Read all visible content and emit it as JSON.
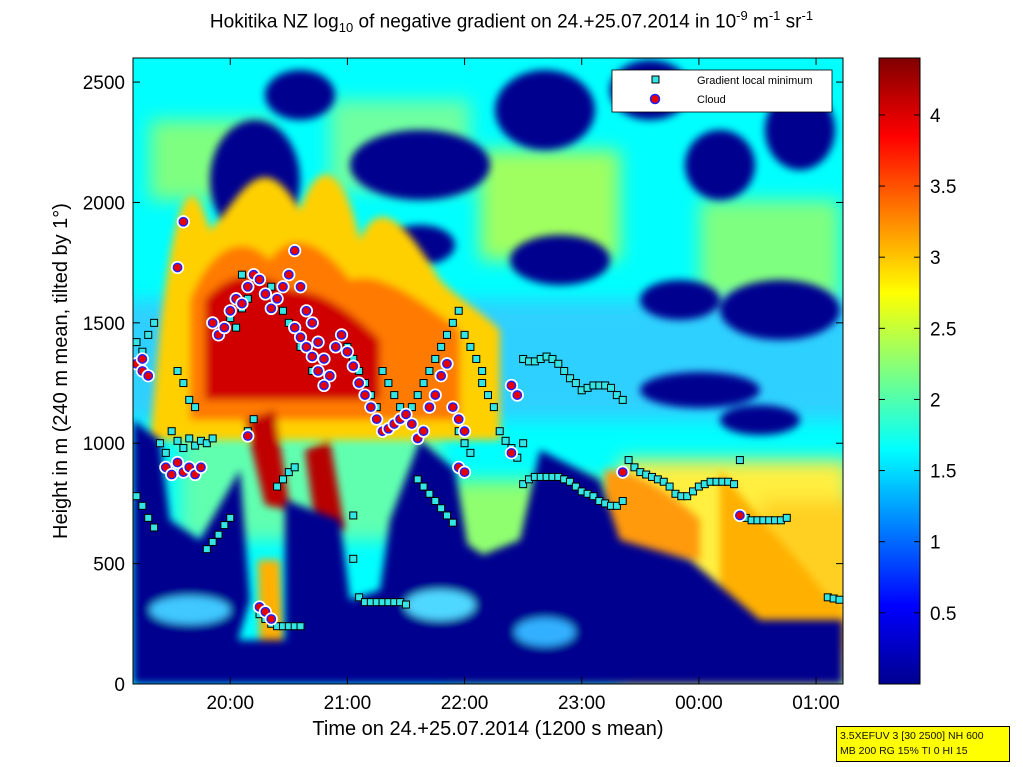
{
  "title": {
    "prefix": "Hokitika NZ log",
    "sub": "10",
    "mid": " of negative gradient on 24.+25.07.2014 in 10",
    "sup1": "-9",
    "mid2": " m",
    "sup2": "-1",
    "mid3": " sr",
    "sup3": "-1"
  },
  "info_box": {
    "line1": "3.5XEFUV 3 [30 2500] NH 600",
    "line2": "MB 200 RG 15% TI 0 HI 15"
  },
  "chart_data": {
    "type": "heatmap",
    "xlabel": "Time on 24.+25.07.2014 (1200 s mean)",
    "ylabel": "Height in m (240 m mean, tilted by 1°)",
    "x_unit": "hours since 00:00 on 24.07.2014",
    "xlim": [
      19.17,
      25.23
    ],
    "ylim": [
      0,
      2600
    ],
    "x_ticks": [
      {
        "value": 20,
        "label": "20:00"
      },
      {
        "value": 21,
        "label": "21:00"
      },
      {
        "value": 22,
        "label": "22:00"
      },
      {
        "value": 23,
        "label": "23:00"
      },
      {
        "value": 24,
        "label": "00:00"
      },
      {
        "value": 25,
        "label": "01:00"
      }
    ],
    "y_ticks": [
      0,
      500,
      1000,
      1500,
      2000,
      2500
    ],
    "colorbar": {
      "colormap": "jet",
      "range": [
        0,
        4.4
      ],
      "ticks": [
        0.5,
        1,
        1.5,
        2,
        2.5,
        3,
        3.5,
        4
      ]
    },
    "colors": {
      "background_low": "#00008f",
      "mid": "#7fff7f",
      "high": "#800000",
      "gradient_marker": "#33e6e6",
      "cloud_marker": "#e60000",
      "cloud_edge": "#2020ff"
    },
    "legend": {
      "position": "top-right",
      "entries": [
        "Gradient local minimum",
        "Cloud"
      ]
    },
    "series": [
      {
        "name": "Gradient local minimum",
        "marker": "square",
        "points": [
          [
            19.2,
            780
          ],
          [
            19.25,
            740
          ],
          [
            19.3,
            690
          ],
          [
            19.35,
            650
          ],
          [
            19.2,
            1420
          ],
          [
            19.25,
            1380
          ],
          [
            19.3,
            1450
          ],
          [
            19.35,
            1500
          ],
          [
            19.4,
            1000
          ],
          [
            19.45,
            960
          ],
          [
            19.5,
            1050
          ],
          [
            19.55,
            1010
          ],
          [
            19.6,
            980
          ],
          [
            19.65,
            1020
          ],
          [
            19.7,
            990
          ],
          [
            19.75,
            1010
          ],
          [
            19.8,
            1000
          ],
          [
            19.85,
            1020
          ],
          [
            19.55,
            1300
          ],
          [
            19.6,
            1250
          ],
          [
            19.65,
            1180
          ],
          [
            19.7,
            1150
          ],
          [
            19.8,
            560
          ],
          [
            19.85,
            590
          ],
          [
            19.9,
            620
          ],
          [
            19.95,
            660
          ],
          [
            20.0,
            690
          ],
          [
            20.0,
            1520
          ],
          [
            20.05,
            1480
          ],
          [
            20.1,
            1560
          ],
          [
            20.15,
            1600
          ],
          [
            20.1,
            1700
          ],
          [
            20.15,
            1050
          ],
          [
            20.2,
            1100
          ],
          [
            20.25,
            290
          ],
          [
            20.3,
            270
          ],
          [
            20.35,
            250
          ],
          [
            20.4,
            240
          ],
          [
            20.45,
            240
          ],
          [
            20.5,
            240
          ],
          [
            20.55,
            240
          ],
          [
            20.6,
            240
          ],
          [
            20.4,
            820
          ],
          [
            20.45,
            850
          ],
          [
            20.5,
            880
          ],
          [
            20.55,
            900
          ],
          [
            20.35,
            1650
          ],
          [
            20.4,
            1600
          ],
          [
            20.45,
            1550
          ],
          [
            20.5,
            1500
          ],
          [
            20.6,
            1400
          ],
          [
            20.7,
            1300
          ],
          [
            20.8,
            1250
          ],
          [
            21.0,
            1400
          ],
          [
            21.05,
            1350
          ],
          [
            21.1,
            1300
          ],
          [
            21.15,
            1250
          ],
          [
            21.2,
            1200
          ],
          [
            21.25,
            1150
          ],
          [
            21.3,
            1300
          ],
          [
            21.35,
            1250
          ],
          [
            21.4,
            1200
          ],
          [
            21.45,
            1150
          ],
          [
            21.5,
            1100
          ],
          [
            21.55,
            1150
          ],
          [
            21.6,
            1200
          ],
          [
            21.65,
            1250
          ],
          [
            21.7,
            1300
          ],
          [
            21.75,
            1350
          ],
          [
            21.8,
            1400
          ],
          [
            21.85,
            1450
          ],
          [
            21.9,
            1500
          ],
          [
            21.95,
            1550
          ],
          [
            22.0,
            1450
          ],
          [
            22.05,
            1400
          ],
          [
            22.1,
            1350
          ],
          [
            22.15,
            1300
          ],
          [
            21.05,
            700
          ],
          [
            21.05,
            520
          ],
          [
            21.1,
            360
          ],
          [
            21.15,
            340
          ],
          [
            21.2,
            340
          ],
          [
            21.25,
            340
          ],
          [
            21.3,
            340
          ],
          [
            21.35,
            340
          ],
          [
            21.4,
            340
          ],
          [
            21.45,
            340
          ],
          [
            21.5,
            330
          ],
          [
            21.6,
            850
          ],
          [
            21.65,
            820
          ],
          [
            21.7,
            790
          ],
          [
            21.75,
            760
          ],
          [
            21.8,
            730
          ],
          [
            21.85,
            700
          ],
          [
            21.9,
            670
          ],
          [
            21.95,
            1050
          ],
          [
            22.0,
            1000
          ],
          [
            22.05,
            960
          ],
          [
            22.15,
            1250
          ],
          [
            22.2,
            1200
          ],
          [
            22.25,
            1150
          ],
          [
            22.3,
            1050
          ],
          [
            22.35,
            1010
          ],
          [
            22.4,
            980
          ],
          [
            22.45,
            940
          ],
          [
            22.5,
            1000
          ],
          [
            22.5,
            1350
          ],
          [
            22.55,
            1340
          ],
          [
            22.6,
            1340
          ],
          [
            22.65,
            1350
          ],
          [
            22.7,
            1360
          ],
          [
            22.75,
            1350
          ],
          [
            22.8,
            1330
          ],
          [
            22.85,
            1300
          ],
          [
            22.9,
            1270
          ],
          [
            22.95,
            1250
          ],
          [
            23.0,
            1220
          ],
          [
            23.05,
            1230
          ],
          [
            23.1,
            1240
          ],
          [
            23.15,
            1240
          ],
          [
            23.2,
            1240
          ],
          [
            23.25,
            1230
          ],
          [
            23.3,
            1200
          ],
          [
            23.35,
            1180
          ],
          [
            22.5,
            830
          ],
          [
            22.55,
            850
          ],
          [
            22.6,
            860
          ],
          [
            22.65,
            860
          ],
          [
            22.7,
            860
          ],
          [
            22.75,
            860
          ],
          [
            22.8,
            860
          ],
          [
            22.85,
            850
          ],
          [
            22.9,
            840
          ],
          [
            22.95,
            820
          ],
          [
            23.0,
            800
          ],
          [
            23.05,
            790
          ],
          [
            23.1,
            780
          ],
          [
            23.15,
            760
          ],
          [
            23.2,
            750
          ],
          [
            23.25,
            740
          ],
          [
            23.3,
            740
          ],
          [
            23.35,
            760
          ],
          [
            23.4,
            930
          ],
          [
            23.45,
            900
          ],
          [
            23.5,
            880
          ],
          [
            23.55,
            870
          ],
          [
            23.6,
            860
          ],
          [
            23.65,
            850
          ],
          [
            23.7,
            840
          ],
          [
            23.75,
            820
          ],
          [
            23.8,
            790
          ],
          [
            23.85,
            780
          ],
          [
            23.9,
            780
          ],
          [
            23.95,
            800
          ],
          [
            24.0,
            820
          ],
          [
            24.05,
            830
          ],
          [
            24.1,
            840
          ],
          [
            24.15,
            840
          ],
          [
            24.2,
            840
          ],
          [
            24.25,
            840
          ],
          [
            24.3,
            830
          ],
          [
            24.35,
            930
          ],
          [
            24.4,
            690
          ],
          [
            24.45,
            680
          ],
          [
            24.5,
            680
          ],
          [
            24.55,
            680
          ],
          [
            24.6,
            680
          ],
          [
            24.65,
            680
          ],
          [
            24.7,
            680
          ],
          [
            24.75,
            690
          ],
          [
            25.1,
            360
          ],
          [
            25.15,
            355
          ],
          [
            25.2,
            350
          ]
        ]
      },
      {
        "name": "Cloud",
        "marker": "circle",
        "points": [
          [
            19.2,
            1330
          ],
          [
            19.25,
            1300
          ],
          [
            19.3,
            1280
          ],
          [
            19.25,
            1350
          ],
          [
            19.45,
            900
          ],
          [
            19.5,
            870
          ],
          [
            19.55,
            920
          ],
          [
            19.6,
            880
          ],
          [
            19.65,
            900
          ],
          [
            19.7,
            870
          ],
          [
            19.75,
            900
          ],
          [
            19.55,
            1730
          ],
          [
            19.6,
            1920
          ],
          [
            19.85,
            1500
          ],
          [
            19.9,
            1450
          ],
          [
            19.95,
            1480
          ],
          [
            20.0,
            1550
          ],
          [
            20.05,
            1600
          ],
          [
            20.1,
            1580
          ],
          [
            20.15,
            1650
          ],
          [
            20.2,
            1700
          ],
          [
            20.25,
            1680
          ],
          [
            20.3,
            1620
          ],
          [
            20.35,
            1560
          ],
          [
            20.4,
            1600
          ],
          [
            20.45,
            1650
          ],
          [
            20.5,
            1700
          ],
          [
            20.55,
            1800
          ],
          [
            20.6,
            1650
          ],
          [
            20.65,
            1550
          ],
          [
            20.7,
            1500
          ],
          [
            20.75,
            1420
          ],
          [
            20.8,
            1350
          ],
          [
            20.85,
            1280
          ],
          [
            20.55,
            1480
          ],
          [
            20.6,
            1440
          ],
          [
            20.65,
            1400
          ],
          [
            20.7,
            1360
          ],
          [
            20.75,
            1300
          ],
          [
            20.8,
            1240
          ],
          [
            20.15,
            1030
          ],
          [
            20.25,
            320
          ],
          [
            20.3,
            300
          ],
          [
            20.35,
            270
          ],
          [
            20.9,
            1400
          ],
          [
            20.95,
            1450
          ],
          [
            21.0,
            1380
          ],
          [
            21.05,
            1320
          ],
          [
            21.1,
            1250
          ],
          [
            21.15,
            1200
          ],
          [
            21.2,
            1150
          ],
          [
            21.25,
            1100
          ],
          [
            21.3,
            1050
          ],
          [
            21.35,
            1060
          ],
          [
            21.4,
            1080
          ],
          [
            21.45,
            1100
          ],
          [
            21.5,
            1120
          ],
          [
            21.55,
            1080
          ],
          [
            21.6,
            1020
          ],
          [
            21.65,
            1050
          ],
          [
            21.7,
            1150
          ],
          [
            21.75,
            1200
          ],
          [
            21.8,
            1280
          ],
          [
            21.85,
            1330
          ],
          [
            21.9,
            1150
          ],
          [
            21.95,
            1100
          ],
          [
            22.0,
            1050
          ],
          [
            21.95,
            900
          ],
          [
            22.0,
            880
          ],
          [
            22.4,
            1240
          ],
          [
            22.45,
            1200
          ],
          [
            22.4,
            960
          ],
          [
            23.35,
            880
          ],
          [
            24.35,
            700
          ]
        ]
      }
    ]
  }
}
